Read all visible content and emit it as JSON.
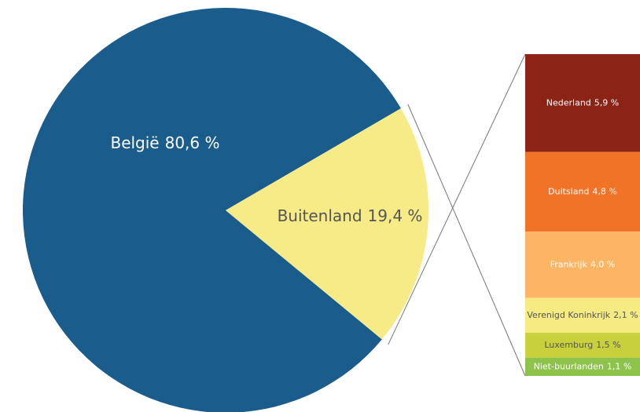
{
  "chart_data": [
    {
      "type": "pie",
      "categories": [
        "België",
        "Buitenland"
      ],
      "values": [
        80.6,
        19.4
      ],
      "value_labels": [
        "80,6 %",
        "19,4 %"
      ],
      "colors": [
        "#1a5c8c",
        "#f6eb87"
      ],
      "label_colors": [
        "#ffffff",
        "#555555"
      ]
    },
    {
      "type": "stacked-bar",
      "series": [
        {
          "name": "Nederland",
          "color": "#8b2317",
          "label_color": "#ffffff",
          "values": [
            5.9
          ],
          "value_labels": [
            "5,9 %"
          ]
        },
        {
          "name": "Duitsland",
          "color": "#f07328",
          "label_color": "#ffffff",
          "values": [
            4.8
          ],
          "value_labels": [
            "4,8 %"
          ]
        },
        {
          "name": "Frankrijk",
          "color": "#fbb564",
          "label_color": "#ffffff",
          "values": [
            4.0
          ],
          "value_labels": [
            "4,0 %"
          ]
        },
        {
          "name": "Verenigd Koninkrijk",
          "color": "#f6ea82",
          "label_color": "#555555",
          "values": [
            2.1
          ],
          "value_labels": [
            "2,1 %"
          ]
        },
        {
          "name": "Luxemburg",
          "color": "#c8d13c",
          "label_color": "#555555",
          "values": [
            1.5
          ],
          "value_labels": [
            "1,5 %"
          ]
        },
        {
          "name": "Niet-buurlanden",
          "color": "#8dc34a",
          "label_color": "#ffffff",
          "values": [
            1.1
          ],
          "value_labels": [
            "1,1 %"
          ]
        }
      ]
    }
  ]
}
